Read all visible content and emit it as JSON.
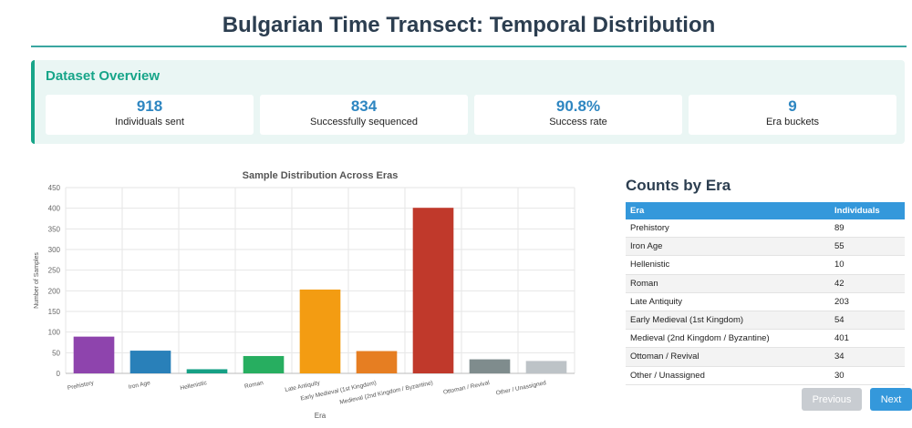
{
  "page": {
    "title": "Bulgarian Time Transect: Temporal Distribution"
  },
  "overview": {
    "title": "Dataset Overview",
    "stats": [
      {
        "value": "918",
        "label": "Individuals sent"
      },
      {
        "value": "834",
        "label": "Successfully sequenced"
      },
      {
        "value": "90.8%",
        "label": "Success rate"
      },
      {
        "value": "9",
        "label": "Era buckets"
      }
    ]
  },
  "chart_data": {
    "type": "bar",
    "title": "Sample Distribution Across Eras",
    "xlabel": "Era",
    "ylabel": "Number of Samples",
    "ylim": [
      0,
      450
    ],
    "yticks": [
      0,
      50,
      100,
      150,
      200,
      250,
      300,
      350,
      400,
      450
    ],
    "grid": true,
    "categories": [
      "Prehistory",
      "Iron Age",
      "Hellenistic",
      "Roman",
      "Late Antiquity",
      "Early Medieval (1st Kingdom)",
      "Medieval (2nd Kingdom / Byzantine)",
      "Ottoman / Revival",
      "Other / Unassigned"
    ],
    "values": [
      89,
      55,
      10,
      42,
      203,
      54,
      401,
      34,
      30
    ],
    "colors": [
      "#8e44ad",
      "#2980b9",
      "#16a085",
      "#27ae60",
      "#f39c12",
      "#e67e22",
      "#c0392b",
      "#7f8c8d",
      "#bdc3c7"
    ]
  },
  "counts": {
    "title": "Counts by Era",
    "headers": [
      "Era",
      "Individuals"
    ],
    "rows": [
      [
        "Prehistory",
        "89"
      ],
      [
        "Iron Age",
        "55"
      ],
      [
        "Hellenistic",
        "10"
      ],
      [
        "Roman",
        "42"
      ],
      [
        "Late Antiquity",
        "203"
      ],
      [
        "Early Medieval (1st Kingdom)",
        "54"
      ],
      [
        "Medieval (2nd Kingdom / Byzantine)",
        "401"
      ],
      [
        "Ottoman / Revival",
        "34"
      ],
      [
        "Other / Unassigned",
        "30"
      ]
    ]
  },
  "nav": {
    "previous": "Previous",
    "next": "Next"
  }
}
